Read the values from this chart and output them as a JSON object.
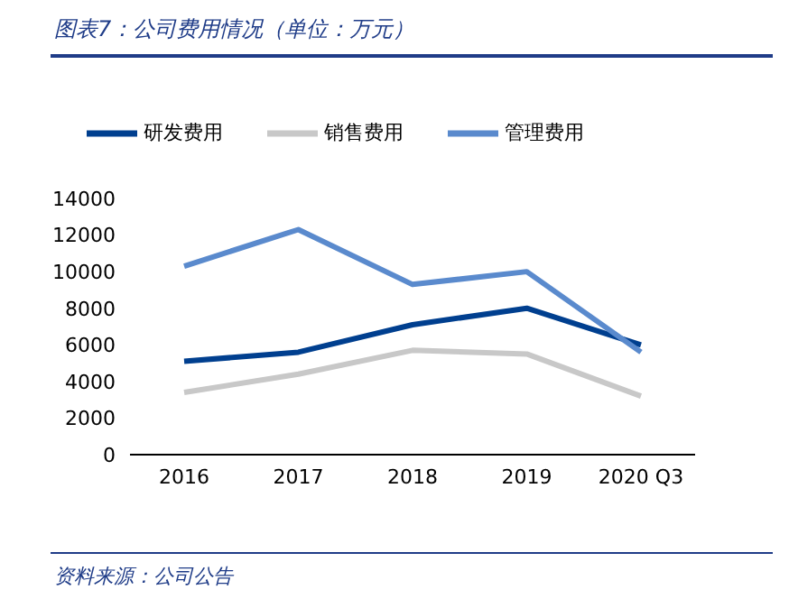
{
  "chart_data": {
    "type": "line",
    "title": "图表7：公司费用情况（单位：万元）",
    "categories": [
      "2016",
      "2017",
      "2018",
      "2019",
      "2020 Q3"
    ],
    "series": [
      {
        "name": "研发费用",
        "color": "#003f8f",
        "values": [
          5100,
          5600,
          7100,
          8000,
          6000
        ]
      },
      {
        "name": "销售费用",
        "color": "#c8c8c8",
        "values": [
          3400,
          4400,
          5700,
          5500,
          3200
        ]
      },
      {
        "name": "管理费用",
        "color": "#5a8acd",
        "values": [
          10300,
          12300,
          9300,
          10000,
          5600
        ]
      }
    ],
    "ylim": [
      0,
      14000
    ],
    "yticks": [
      0,
      2000,
      4000,
      6000,
      8000,
      10000,
      12000,
      14000
    ],
    "grid": false,
    "legend": "top",
    "marker": "none",
    "line_style": "solid",
    "annotations": [
      "资料来源：公司公告"
    ]
  }
}
